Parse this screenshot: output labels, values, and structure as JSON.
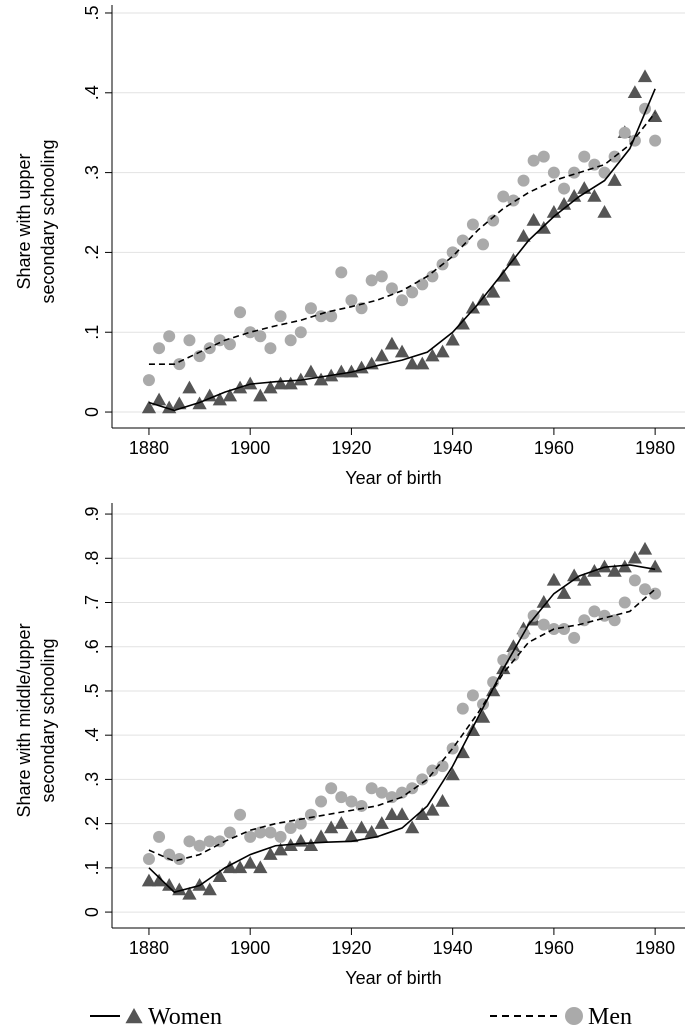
{
  "chart_data": [
    {
      "type": "scatter",
      "ylabel": [
        "Share with upper",
        "secondary schooling"
      ],
      "xlabel": "Year of birth",
      "xlim": [
        1872.7,
        1985.9
      ],
      "ylim": [
        -0.02,
        0.51
      ],
      "xticks": [
        1880,
        1900,
        1920,
        1940,
        1960,
        1980
      ],
      "yticks": [
        0,
        {
          "value": 0.1,
          "label": ".1"
        },
        {
          "value": 0.2,
          "label": ".2"
        },
        {
          "value": 0.3,
          "label": ".3"
        },
        {
          "value": 0.4,
          "label": ".4"
        },
        {
          "value": 0.5,
          "label": ".5"
        }
      ],
      "grid": true,
      "x": [
        1880,
        1882,
        1884,
        1886,
        1888,
        1890,
        1892,
        1894,
        1896,
        1898,
        1900,
        1902,
        1904,
        1906,
        1908,
        1910,
        1912,
        1914,
        1916,
        1918,
        1920,
        1922,
        1924,
        1926,
        1928,
        1930,
        1932,
        1934,
        1936,
        1938,
        1940,
        1942,
        1944,
        1946,
        1948,
        1950,
        1952,
        1954,
        1956,
        1958,
        1960,
        1962,
        1964,
        1966,
        1968,
        1970,
        1972,
        1974,
        1976,
        1978,
        1980
      ],
      "fit_x": [
        1880,
        1885,
        1890,
        1895,
        1900,
        1905,
        1910,
        1915,
        1920,
        1925,
        1930,
        1935,
        1940,
        1945,
        1950,
        1955,
        1960,
        1965,
        1970,
        1975,
        1980
      ],
      "series": [
        {
          "color": "#555555",
          "marker": "triangle",
          "line_style": "solid",
          "values": [
            0.005,
            0.015,
            0.005,
            0.01,
            0.03,
            0.01,
            0.02,
            0.015,
            0.02,
            0.03,
            0.035,
            0.02,
            0.03,
            0.035,
            0.035,
            0.04,
            0.05,
            0.04,
            0.045,
            0.05,
            0.05,
            0.055,
            0.06,
            0.07,
            0.085,
            0.075,
            0.06,
            0.06,
            0.07,
            0.075,
            0.09,
            0.11,
            0.13,
            0.14,
            0.15,
            0.17,
            0.19,
            0.22,
            0.24,
            0.23,
            0.25,
            0.26,
            0.27,
            0.28,
            0.27,
            0.25,
            0.29,
            0.35,
            0.4,
            0.42,
            0.37
          ],
          "fit_values": [
            0.012,
            0.002,
            0.012,
            0.025,
            0.035,
            0.038,
            0.04,
            0.045,
            0.05,
            0.058,
            0.065,
            0.075,
            0.1,
            0.135,
            0.175,
            0.215,
            0.245,
            0.27,
            0.29,
            0.33,
            0.405
          ]
        },
        {
          "color": "#aaaaaa",
          "marker": "circle",
          "line_style": "dashed",
          "values": [
            0.04,
            0.08,
            0.095,
            0.06,
            0.09,
            0.07,
            0.08,
            0.09,
            0.085,
            0.125,
            0.1,
            0.095,
            0.08,
            0.12,
            0.09,
            0.1,
            0.13,
            0.12,
            0.12,
            0.175,
            0.14,
            0.13,
            0.165,
            0.17,
            0.155,
            0.14,
            0.15,
            0.16,
            0.17,
            0.185,
            0.2,
            0.215,
            0.235,
            0.21,
            0.24,
            0.27,
            0.265,
            0.29,
            0.315,
            0.32,
            0.3,
            0.28,
            0.3,
            0.32,
            0.31,
            0.3,
            0.32,
            0.35,
            0.34,
            0.38,
            0.34
          ],
          "fit_values": [
            0.06,
            0.06,
            0.075,
            0.09,
            0.1,
            0.108,
            0.115,
            0.125,
            0.132,
            0.14,
            0.152,
            0.17,
            0.195,
            0.228,
            0.255,
            0.275,
            0.29,
            0.3,
            0.31,
            0.335,
            0.375
          ]
        }
      ]
    },
    {
      "type": "scatter",
      "ylabel": [
        "Share with middle/upper",
        "secondary schooling"
      ],
      "xlabel": "Year of birth",
      "xlim": [
        1872.7,
        1985.9
      ],
      "ylim": [
        -0.036,
        0.925
      ],
      "xticks": [
        1880,
        1900,
        1920,
        1940,
        1960,
        1980
      ],
      "yticks": [
        0,
        {
          "value": 0.1,
          "label": ".1"
        },
        {
          "value": 0.2,
          "label": ".2"
        },
        {
          "value": 0.3,
          "label": ".3"
        },
        {
          "value": 0.4,
          "label": ".4"
        },
        {
          "value": 0.5,
          "label": ".5"
        },
        {
          "value": 0.6,
          "label": ".6"
        },
        {
          "value": 0.7,
          "label": ".7"
        },
        {
          "value": 0.8,
          "label": ".8"
        },
        {
          "value": 0.9,
          "label": ".9"
        }
      ],
      "grid": true,
      "legend": "bottom",
      "x": [
        1880,
        1882,
        1884,
        1886,
        1888,
        1890,
        1892,
        1894,
        1896,
        1898,
        1900,
        1902,
        1904,
        1906,
        1908,
        1910,
        1912,
        1914,
        1916,
        1918,
        1920,
        1922,
        1924,
        1926,
        1928,
        1930,
        1932,
        1934,
        1936,
        1938,
        1940,
        1942,
        1944,
        1946,
        1948,
        1950,
        1952,
        1954,
        1956,
        1958,
        1960,
        1962,
        1964,
        1966,
        1968,
        1970,
        1972,
        1974,
        1976,
        1978,
        1980
      ],
      "fit_x": [
        1880,
        1885,
        1890,
        1895,
        1900,
        1905,
        1910,
        1915,
        1920,
        1925,
        1930,
        1935,
        1940,
        1945,
        1950,
        1955,
        1960,
        1965,
        1970,
        1975,
        1980
      ],
      "series": [
        {
          "name": "Women",
          "color": "#555555",
          "marker": "triangle",
          "line_style": "solid",
          "values": [
            0.07,
            0.07,
            0.06,
            0.05,
            0.04,
            0.06,
            0.05,
            0.08,
            0.1,
            0.1,
            0.11,
            0.1,
            0.13,
            0.14,
            0.15,
            0.16,
            0.15,
            0.17,
            0.19,
            0.2,
            0.17,
            0.19,
            0.18,
            0.2,
            0.22,
            0.22,
            0.19,
            0.22,
            0.23,
            0.25,
            0.31,
            0.36,
            0.41,
            0.44,
            0.5,
            0.55,
            0.6,
            0.64,
            0.66,
            0.7,
            0.75,
            0.72,
            0.76,
            0.75,
            0.77,
            0.78,
            0.77,
            0.78,
            0.8,
            0.82,
            0.78
          ],
          "fit_values": [
            0.1,
            0.045,
            0.06,
            0.1,
            0.13,
            0.15,
            0.155,
            0.158,
            0.16,
            0.17,
            0.19,
            0.24,
            0.33,
            0.44,
            0.55,
            0.65,
            0.72,
            0.76,
            0.78,
            0.785,
            0.775
          ]
        },
        {
          "name": "Men",
          "color": "#aaaaaa",
          "marker": "circle",
          "line_style": "dashed",
          "values": [
            0.12,
            0.17,
            0.13,
            0.12,
            0.16,
            0.15,
            0.16,
            0.16,
            0.18,
            0.22,
            0.17,
            0.18,
            0.18,
            0.17,
            0.19,
            0.2,
            0.22,
            0.25,
            0.28,
            0.26,
            0.25,
            0.24,
            0.28,
            0.27,
            0.26,
            0.27,
            0.28,
            0.3,
            0.32,
            0.33,
            0.37,
            0.46,
            0.49,
            0.47,
            0.52,
            0.57,
            0.58,
            0.63,
            0.67,
            0.65,
            0.64,
            0.64,
            0.62,
            0.66,
            0.68,
            0.67,
            0.66,
            0.7,
            0.75,
            0.73,
            0.72
          ],
          "fit_values": [
            0.14,
            0.115,
            0.13,
            0.16,
            0.185,
            0.2,
            0.21,
            0.22,
            0.23,
            0.24,
            0.26,
            0.3,
            0.37,
            0.45,
            0.54,
            0.61,
            0.64,
            0.65,
            0.665,
            0.68,
            0.73
          ]
        }
      ]
    }
  ]
}
